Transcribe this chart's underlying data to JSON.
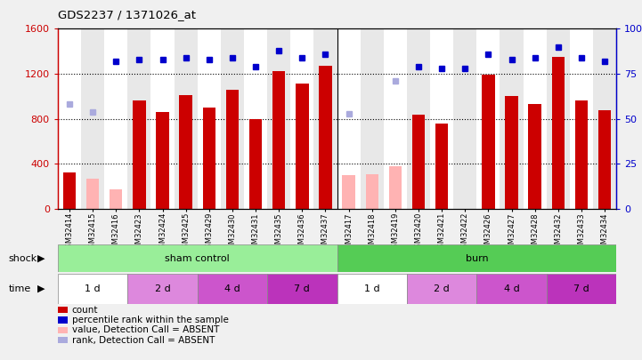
{
  "title": "GDS2237 / 1371026_at",
  "samples": [
    "GSM32414",
    "GSM32415",
    "GSM32416",
    "GSM32423",
    "GSM32424",
    "GSM32425",
    "GSM32429",
    "GSM32430",
    "GSM32431",
    "GSM32435",
    "GSM32436",
    "GSM32437",
    "GSM32417",
    "GSM32418",
    "GSM32419",
    "GSM32420",
    "GSM32421",
    "GSM32422",
    "GSM32426",
    "GSM32427",
    "GSM32428",
    "GSM32432",
    "GSM32433",
    "GSM32434"
  ],
  "count_values": [
    320,
    null,
    null,
    960,
    860,
    1010,
    900,
    1060,
    800,
    1220,
    1110,
    1270,
    null,
    null,
    null,
    840,
    760,
    null,
    1190,
    1000,
    930,
    1350,
    960,
    880
  ],
  "count_absent": [
    null,
    270,
    170,
    null,
    null,
    null,
    null,
    null,
    null,
    null,
    null,
    null,
    300,
    310,
    380,
    null,
    null,
    null,
    null,
    null,
    null,
    null,
    null,
    null
  ],
  "percentile_rank": [
    null,
    null,
    82,
    83,
    83,
    84,
    83,
    84,
    79,
    88,
    84,
    86,
    null,
    null,
    null,
    79,
    78,
    78,
    86,
    83,
    84,
    90,
    84,
    82
  ],
  "percentile_absent": [
    58,
    54,
    null,
    null,
    null,
    null,
    null,
    null,
    null,
    null,
    null,
    null,
    53,
    null,
    71,
    null,
    null,
    null,
    null,
    null,
    null,
    null,
    null,
    null
  ],
  "ylim_left": [
    0,
    1600
  ],
  "ylim_right": [
    0,
    100
  ],
  "yticks_left": [
    0,
    400,
    800,
    1200,
    1600
  ],
  "yticks_right": [
    0,
    25,
    50,
    75,
    100
  ],
  "bar_color_present": "#cc0000",
  "bar_color_absent": "#ffb3b3",
  "dot_color_present": "#0000cc",
  "dot_color_absent": "#aaaadd",
  "shock_sham_color": "#99ee99",
  "shock_burn_color": "#55cc55",
  "time_white_color": "#ffffff",
  "time_pink_color": "#dd66dd",
  "time_darkpink_color": "#cc44cc",
  "legend_items": [
    {
      "label": "count",
      "color": "#cc0000"
    },
    {
      "label": "percentile rank within the sample",
      "color": "#0000cc"
    },
    {
      "label": "value, Detection Call = ABSENT",
      "color": "#ffb3b3"
    },
    {
      "label": "rank, Detection Call = ABSENT",
      "color": "#aaaadd"
    }
  ],
  "n_samples": 24,
  "background_color": "#f0f0f0",
  "plot_bg_color": "#ffffff"
}
